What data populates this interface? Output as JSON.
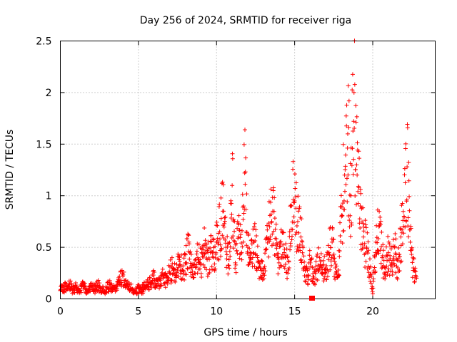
{
  "chart_data": {
    "type": "scatter",
    "title": "Day 256 of 2024, SRMTID for receiver riga",
    "xlabel": "GPS time / hours",
    "ylabel": "SRMTID / TECUs",
    "xlim": [
      0,
      24
    ],
    "ylim": [
      0,
      2.5
    ],
    "x_ticks": [
      0,
      5,
      10,
      15,
      20
    ],
    "x_tick_labels": [
      "0",
      "5",
      "10",
      "15",
      "20"
    ],
    "y_ticks": [
      0,
      0.5,
      1,
      1.5,
      2,
      2.5
    ],
    "y_tick_labels": [
      "0",
      "0.5",
      "1",
      "1.5",
      "2",
      "2.5"
    ],
    "grid": true,
    "marker": "plus",
    "color": "#ff0000",
    "points": [
      [
        0.0,
        0.08
      ],
      [
        0.2,
        0.12
      ],
      [
        0.4,
        0.1
      ],
      [
        0.6,
        0.14
      ],
      [
        0.8,
        0.09
      ],
      [
        1.0,
        0.11
      ],
      [
        1.2,
        0.07
      ],
      [
        1.4,
        0.13
      ],
      [
        1.6,
        0.1
      ],
      [
        1.8,
        0.08
      ],
      [
        2.0,
        0.12
      ],
      [
        2.2,
        0.09
      ],
      [
        2.4,
        0.13
      ],
      [
        2.6,
        0.1
      ],
      [
        2.8,
        0.07
      ],
      [
        3.0,
        0.11
      ],
      [
        3.2,
        0.14
      ],
      [
        3.4,
        0.09
      ],
      [
        3.6,
        0.12
      ],
      [
        3.8,
        0.17
      ],
      [
        4.0,
        0.22
      ],
      [
        4.2,
        0.18
      ],
      [
        4.4,
        0.12
      ],
      [
        4.6,
        0.09
      ],
      [
        4.8,
        0.07
      ],
      [
        5.0,
        0.1
      ],
      [
        5.2,
        0.08
      ],
      [
        5.4,
        0.12
      ],
      [
        5.6,
        0.14
      ],
      [
        5.8,
        0.16
      ],
      [
        6.0,
        0.2
      ],
      [
        6.2,
        0.13
      ],
      [
        6.4,
        0.18
      ],
      [
        6.6,
        0.22
      ],
      [
        6.8,
        0.16
      ],
      [
        7.0,
        0.25
      ],
      [
        7.2,
        0.3
      ],
      [
        7.4,
        0.22
      ],
      [
        7.6,
        0.38
      ],
      [
        7.8,
        0.28
      ],
      [
        8.0,
        0.35
      ],
      [
        8.2,
        0.46
      ],
      [
        8.4,
        0.3
      ],
      [
        8.6,
        0.25
      ],
      [
        8.8,
        0.4
      ],
      [
        9.0,
        0.33
      ],
      [
        9.2,
        0.52
      ],
      [
        9.4,
        0.38
      ],
      [
        9.6,
        0.45
      ],
      [
        9.8,
        0.4
      ],
      [
        10.0,
        0.55
      ],
      [
        10.2,
        0.65
      ],
      [
        10.4,
        0.85
      ],
      [
        10.6,
        0.5
      ],
      [
        10.8,
        0.38
      ],
      [
        11.0,
        1.1
      ],
      [
        11.2,
        0.35
      ],
      [
        11.4,
        0.6
      ],
      [
        11.6,
        0.45
      ],
      [
        11.8,
        1.22
      ],
      [
        12.0,
        0.5
      ],
      [
        12.2,
        0.38
      ],
      [
        12.4,
        0.55
      ],
      [
        12.6,
        0.42
      ],
      [
        12.8,
        0.3
      ],
      [
        13.0,
        0.25
      ],
      [
        13.2,
        0.48
      ],
      [
        13.4,
        0.7
      ],
      [
        13.6,
        0.85
      ],
      [
        13.8,
        0.52
      ],
      [
        14.0,
        0.35
      ],
      [
        14.2,
        0.65
      ],
      [
        14.4,
        0.4
      ],
      [
        14.6,
        0.28
      ],
      [
        14.8,
        0.9
      ],
      [
        15.0,
        0.95
      ],
      [
        15.2,
        0.75
      ],
      [
        15.4,
        0.6
      ],
      [
        15.6,
        0.3
      ],
      [
        15.8,
        0.22
      ],
      [
        16.0,
        0.35
      ],
      [
        16.2,
        0.2
      ],
      [
        16.4,
        0.28
      ],
      [
        16.6,
        0.4
      ],
      [
        16.8,
        0.32
      ],
      [
        17.0,
        0.25
      ],
      [
        17.2,
        0.45
      ],
      [
        17.4,
        0.55
      ],
      [
        17.6,
        0.3
      ],
      [
        17.8,
        0.28
      ],
      [
        18.0,
        0.8
      ],
      [
        18.2,
        1.2
      ],
      [
        18.4,
        1.6
      ],
      [
        18.6,
        1.0
      ],
      [
        18.8,
        2.0
      ],
      [
        19.0,
        1.2
      ],
      [
        19.2,
        0.9
      ],
      [
        19.4,
        0.6
      ],
      [
        19.6,
        0.5
      ],
      [
        19.8,
        0.3
      ],
      [
        20.0,
        0.05
      ],
      [
        20.2,
        0.55
      ],
      [
        20.4,
        0.7
      ],
      [
        20.6,
        0.4
      ],
      [
        20.8,
        0.3
      ],
      [
        21.0,
        0.45
      ],
      [
        21.2,
        0.35
      ],
      [
        21.4,
        0.5
      ],
      [
        21.6,
        0.3
      ],
      [
        21.8,
        0.6
      ],
      [
        22.0,
        0.8
      ],
      [
        22.2,
        1.28
      ],
      [
        22.4,
        0.55
      ],
      [
        22.6,
        0.3
      ],
      [
        22.8,
        0.2
      ]
    ]
  }
}
